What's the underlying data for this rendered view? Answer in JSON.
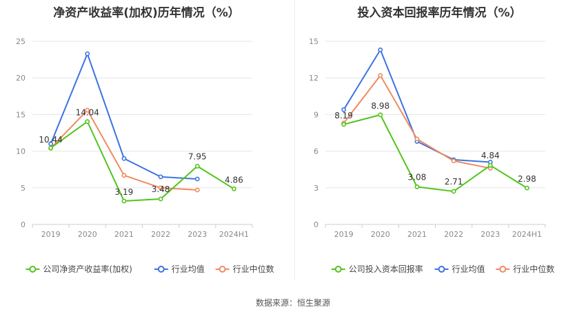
{
  "source": "数据来源：恒生聚源",
  "colors": {
    "company": "#52c41a",
    "average": "#3b73e0",
    "median": "#f08a60"
  },
  "chart_data": [
    {
      "type": "line",
      "title": "净资产收益率(加权)历年情况（%）",
      "categories": [
        "2019",
        "2020",
        "2021",
        "2022",
        "2023",
        "2024H1"
      ],
      "ylim": [
        0,
        25
      ],
      "yticks": [
        0,
        5,
        10,
        15,
        20,
        25
      ],
      "grid": true,
      "legend_position": "bottom",
      "series": [
        {
          "name": "公司净资产收益率(加权)",
          "key": "company",
          "values": [
            10.44,
            14.04,
            3.19,
            3.48,
            7.95,
            4.86
          ],
          "labels": [
            "10.44",
            "14.04",
            "3.19",
            "3.48",
            "7.95",
            "4.86"
          ]
        },
        {
          "name": "行业均值",
          "key": "average",
          "values": [
            11.0,
            23.3,
            9.0,
            6.5,
            6.2,
            null
          ]
        },
        {
          "name": "行业中位数",
          "key": "median",
          "values": [
            10.4,
            15.6,
            6.7,
            5.0,
            4.7,
            null
          ]
        }
      ]
    },
    {
      "type": "line",
      "title": "投入资本回报率历年情况（%）",
      "categories": [
        "2019",
        "2020",
        "2021",
        "2022",
        "2023",
        "2024H1"
      ],
      "ylim": [
        0,
        15
      ],
      "yticks": [
        0,
        3,
        6,
        9,
        12,
        15
      ],
      "grid": true,
      "legend_position": "bottom",
      "series": [
        {
          "name": "公司投入资本回报率",
          "key": "company",
          "values": [
            8.19,
            8.98,
            3.08,
            2.71,
            4.84,
            2.98
          ],
          "labels": [
            "8.19",
            "8.98",
            "3.08",
            "2.71",
            "4.84",
            "2.98"
          ]
        },
        {
          "name": "行业均值",
          "key": "average",
          "values": [
            9.4,
            14.3,
            6.8,
            5.3,
            5.1,
            null
          ]
        },
        {
          "name": "行业中位数",
          "key": "median",
          "values": [
            8.3,
            12.2,
            7.0,
            5.2,
            4.6,
            null
          ]
        }
      ]
    }
  ]
}
